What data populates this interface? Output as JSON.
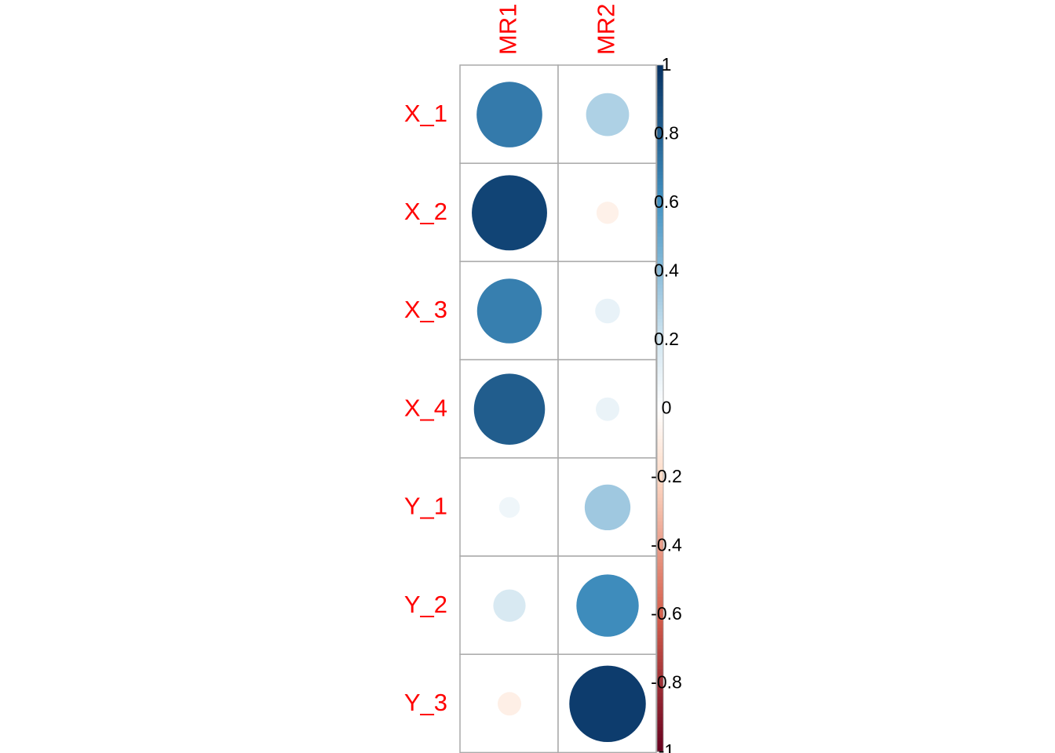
{
  "chart_data": {
    "type": "heatmap",
    "style": "corrplot-circle",
    "title": "",
    "columns": [
      "MR1",
      "MR2"
    ],
    "rows": [
      "X_1",
      "X_2",
      "X_3",
      "X_4",
      "Y_1",
      "Y_2",
      "Y_3"
    ],
    "values": [
      [
        0.7,
        0.3
      ],
      [
        0.92,
        -0.08
      ],
      [
        0.68,
        0.1
      ],
      [
        0.82,
        0.09
      ],
      [
        0.07,
        0.34
      ],
      [
        0.17,
        0.63
      ],
      [
        -0.09,
        0.95
      ]
    ],
    "colorbar": {
      "range": [
        -1,
        1
      ],
      "ticks": [
        "1",
        "0.8",
        "0.6",
        "0.4",
        "0.2",
        "0",
        "-0.2",
        "-0.4",
        "-0.6",
        "-0.8",
        "-1"
      ],
      "colors": {
        "neg_strong": "#67001F",
        "neg_mid": "#D6604D",
        "neg_light": "#FDDBC7",
        "zero": "#FFFFFF",
        "pos_light": "#D1E5F0",
        "pos_mid": "#4393C3",
        "pos_strong": "#053061"
      }
    },
    "label_color": "#FF0000",
    "grid_color": "#AAAAAA",
    "grid": true,
    "legend_position": "right"
  }
}
